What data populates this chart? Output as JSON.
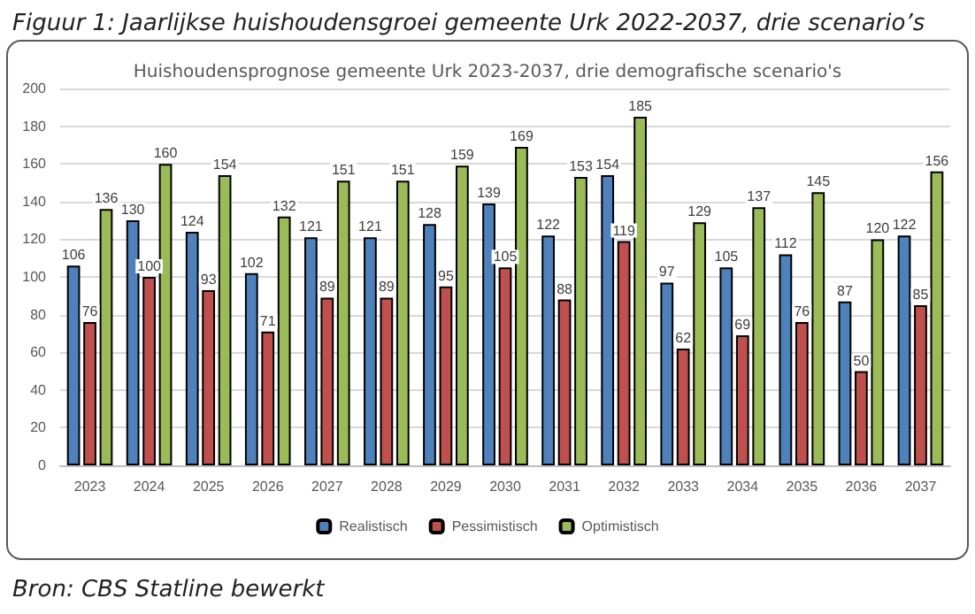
{
  "chart_data": {
    "type": "bar",
    "title": "Figuur 1: Jaarlijkse huishoudensgroei gemeente Urk 2022-2037, drie scenario’s",
    "subtitle": "Huishoudensprognose gemeente Urk 2023-2037, drie demografische scenario's",
    "annotations": [
      "Bron: CBS Statline bewerkt"
    ],
    "categories": [
      "2023",
      "2024",
      "2025",
      "2026",
      "2027",
      "2028",
      "2029",
      "2030",
      "2031",
      "2032",
      "2033",
      "2034",
      "2035",
      "2036",
      "2037"
    ],
    "series": [
      {
        "name": "Realistisch",
        "color": "#4f81bd",
        "values": [
          106,
          130,
          124,
          102,
          121,
          121,
          128,
          139,
          122,
          154,
          97,
          105,
          112,
          87,
          122
        ]
      },
      {
        "name": "Pessimistisch",
        "color": "#c0504d",
        "values": [
          76,
          100,
          93,
          71,
          89,
          89,
          95,
          105,
          88,
          119,
          62,
          69,
          76,
          50,
          85
        ]
      },
      {
        "name": "Optimistisch",
        "color": "#9bbb59",
        "values": [
          136,
          160,
          154,
          132,
          151,
          151,
          159,
          169,
          153,
          185,
          129,
          137,
          145,
          120,
          156
        ]
      }
    ],
    "ylim": [
      0,
      200
    ],
    "yticks": [
      0,
      20,
      40,
      60,
      80,
      100,
      120,
      140,
      160,
      180,
      200
    ],
    "grid": "y",
    "legend": "bottom",
    "data_labels": true
  }
}
